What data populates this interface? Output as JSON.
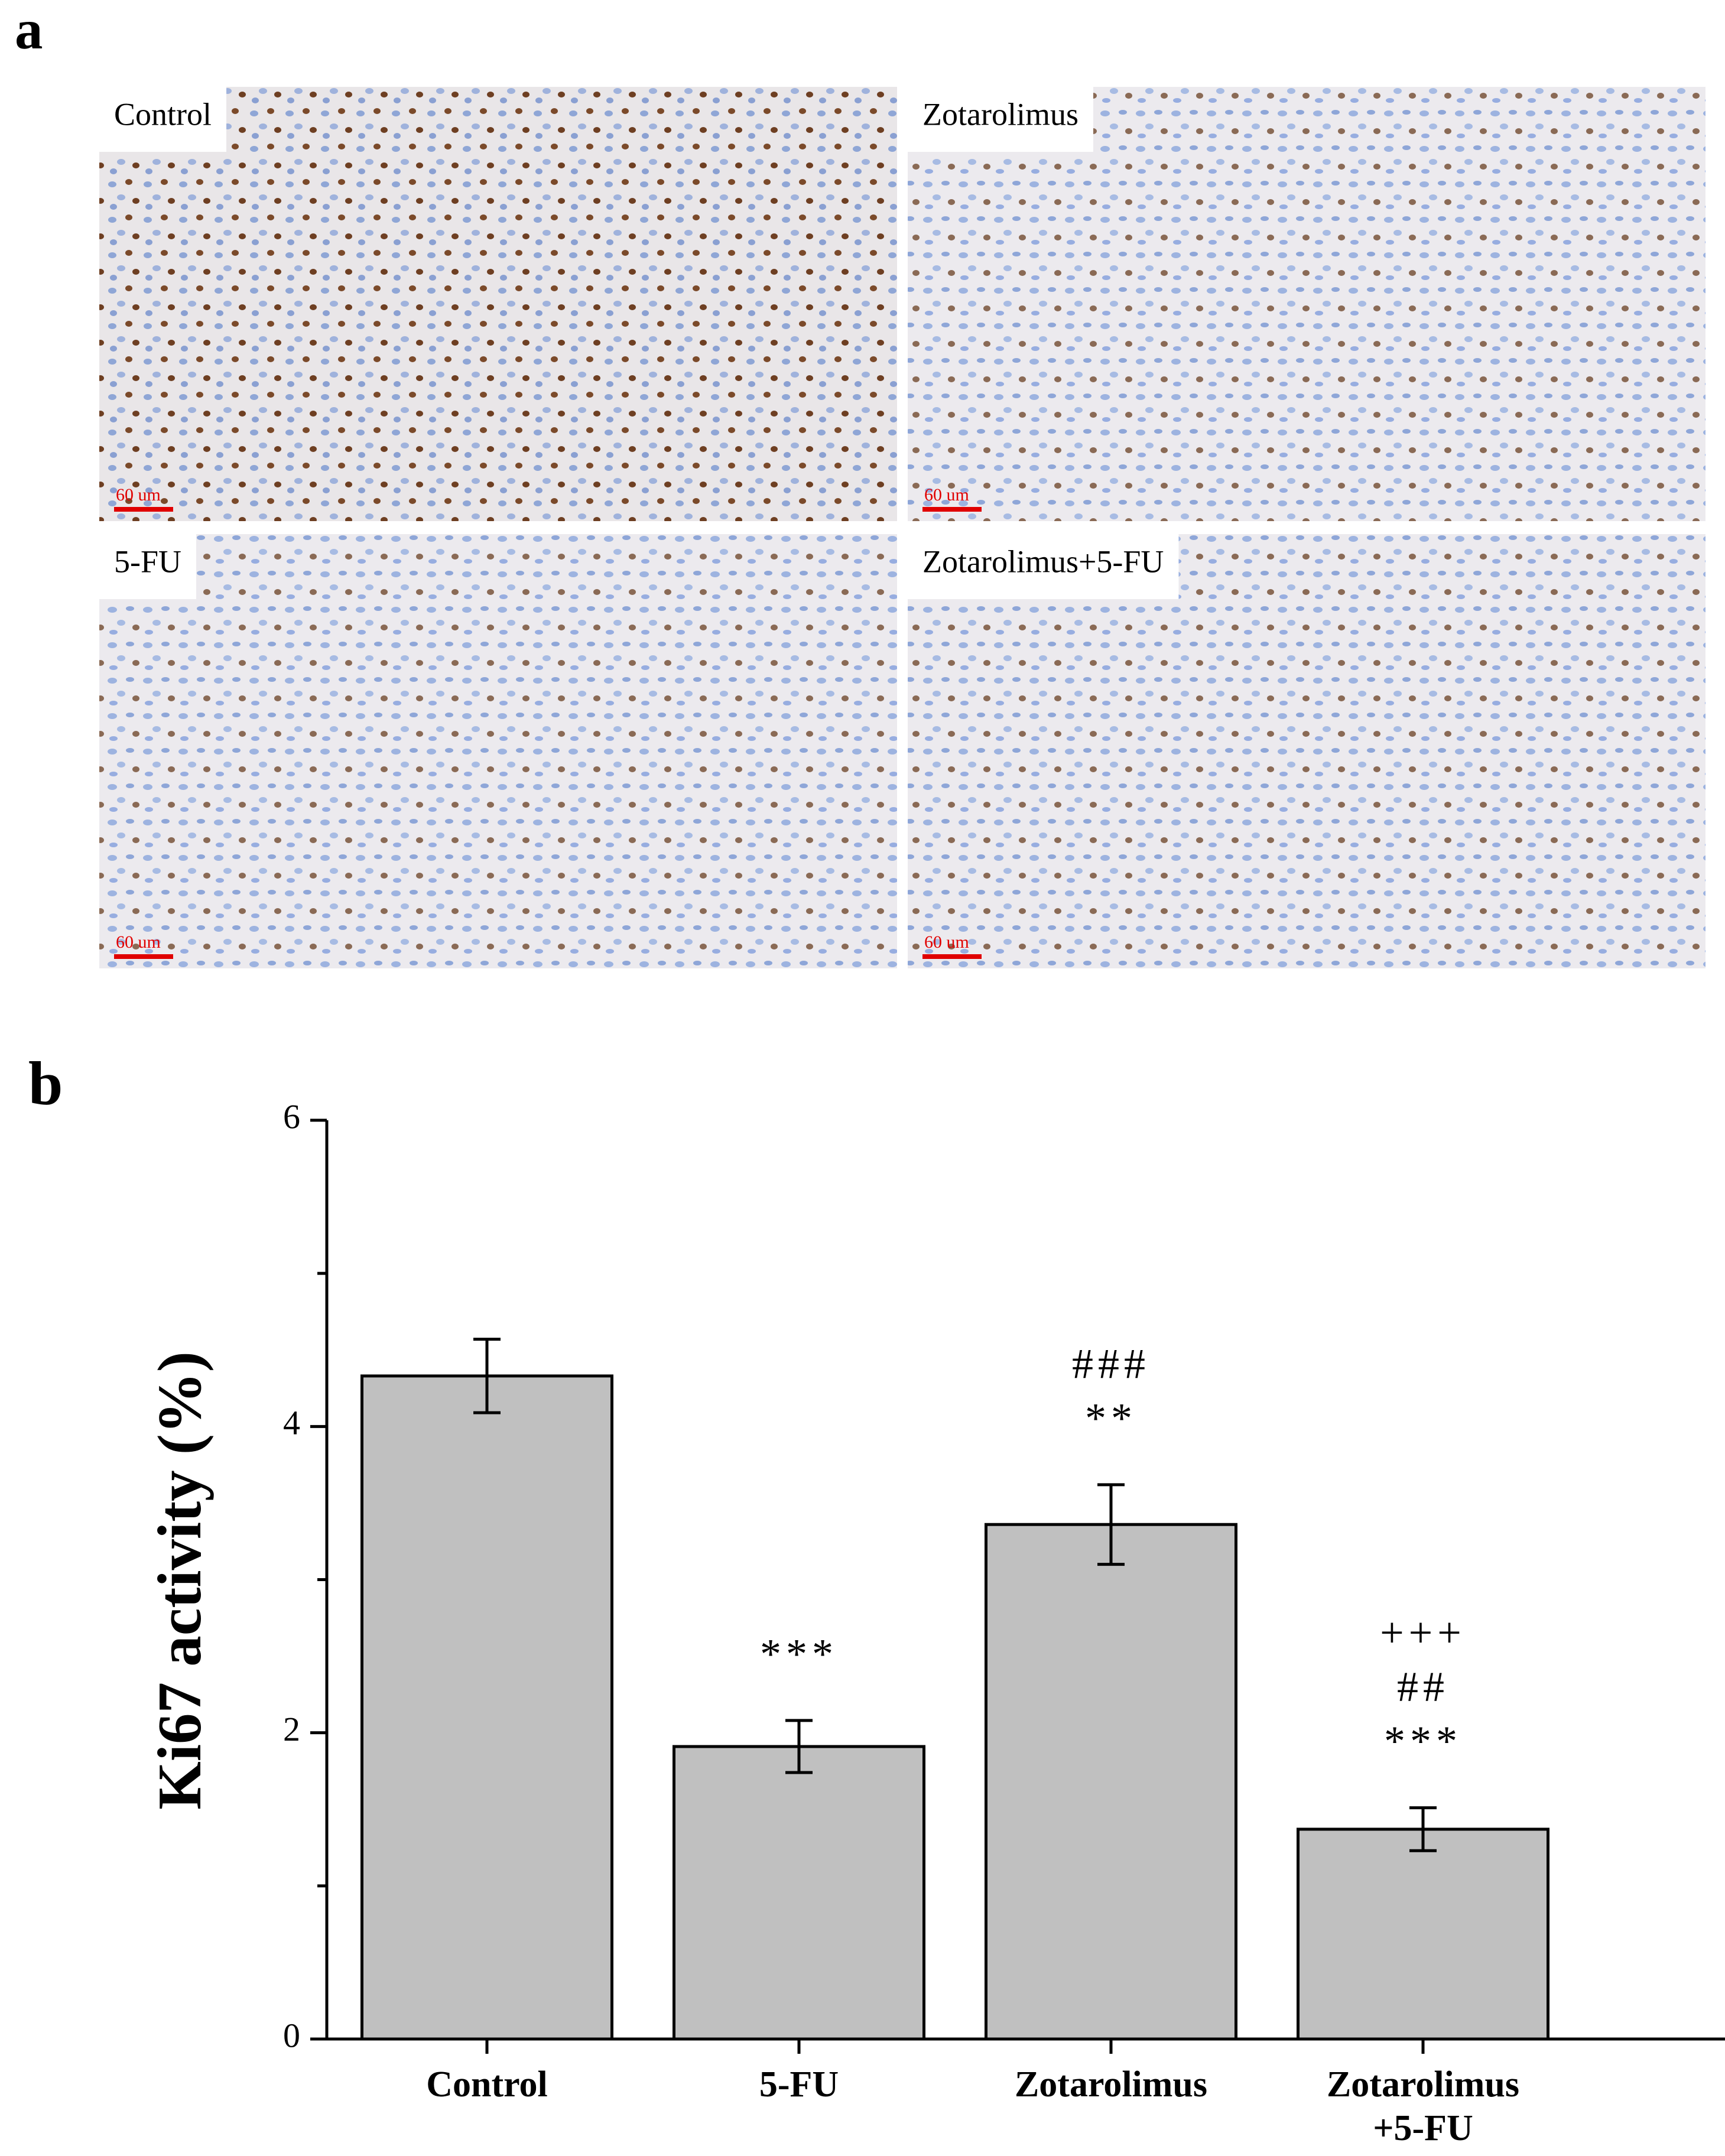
{
  "panel_a": {
    "label": "a",
    "images": [
      {
        "label": "Control",
        "scale_bar": "60 um"
      },
      {
        "label": "Zotarolimus",
        "scale_bar": "60 um"
      },
      {
        "label": "5-FU",
        "scale_bar": "60 um"
      },
      {
        "label": "Zotarolimus+5-FU",
        "scale_bar": "60 um"
      }
    ]
  },
  "chart_data": {
    "type": "bar",
    "panel_label": "b",
    "y_label": "Ki67 activity (%)",
    "categories": [
      "Control",
      "5-FU",
      "Zotarolimus",
      "Zotarolimus +5-FU"
    ],
    "values": [
      4.33,
      1.91,
      3.36,
      1.37
    ],
    "errors": [
      0.24,
      0.17,
      0.26,
      0.14
    ],
    "annotations": [
      [],
      [
        "***"
      ],
      [
        "###",
        "**"
      ],
      [
        "+++",
        "##",
        "***"
      ]
    ],
    "color": "#c0c0c0",
    "ylim": [
      0,
      6
    ],
    "yticks": [
      0,
      2,
      4,
      6
    ],
    "minor_yticks": [
      1,
      3,
      5
    ]
  }
}
